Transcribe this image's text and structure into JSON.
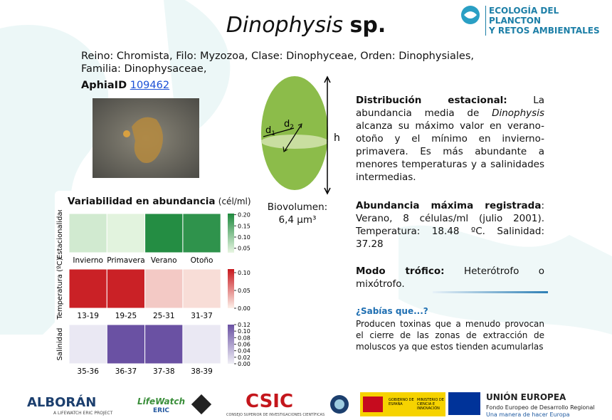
{
  "header": {
    "title_genus": "Dinophysis",
    "title_rest": "sp.",
    "logo_line_1": "ECOLOGÍA DEL PLANCTON",
    "logo_line_2": "Y RETOS AMBIENTALES"
  },
  "taxonomy": "Reino: Chromista, Filo: Myzozoa, Clase: Dinophyceae, Orden: Dinophysiales, Familia: Dinophysaceae,",
  "aphia": {
    "label": "AphiaID",
    "id": "109462"
  },
  "diagram": {
    "d": "d",
    "sub_1": "1",
    "sub_2": "2",
    "h": "h",
    "biovolume_label": "Biovolumen:",
    "biovolume_value": "6,4 µm³"
  },
  "distribution": {
    "title": "Distribución estacional:",
    "text_1": "La abundancia media de",
    "genus": "Dinophysis",
    "text_2": "alcanza su máximo valor en verano-otoño y el mínimo en invierno-primavera. Es más abundante a menores temperaturas y a salinidades intermedias."
  },
  "max_abundance": {
    "title": "Abundancia máxima registrada",
    "text": ": Verano, 8 células/ml (julio 2001). Temperatura: 18.48 ºC. Salinidad: 37.28"
  },
  "trophic": {
    "title": "Modo trófico:",
    "text": "Heterótrofo o mixótrofo."
  },
  "did_you_know": {
    "title": "¿Sabías que...?",
    "text": "Producen toxinas que a menudo provocan el cierre de las zonas de extracción de moluscos ya que estos tienden acumularlas"
  },
  "heatmap": {
    "title": "Variabilidad en abundancia",
    "unit": "(cél/ml)",
    "panels": [
      {
        "label": "Estacionalidad",
        "categories": [
          "Invierno",
          "Primavera",
          "Verano",
          "Otoño"
        ],
        "values": [
          0.05,
          0.035,
          0.2,
          0.19
        ],
        "vlim": [
          0.03,
          0.205
        ],
        "ticks": [
          {
            "value": 0.2,
            "label": "0.20"
          },
          0.15,
          {
            "value": 0.1,
            "label": "0.10"
          },
          0.05
        ],
        "cmap": [
          "#e8f6e3",
          "#1e8a3e"
        ]
      },
      {
        "label": "Temperatura (ºC)",
        "categories": [
          "13-19",
          "19-25",
          "25-31",
          "31-37"
        ],
        "values": [
          0.105,
          0.105,
          0.02,
          0.01
        ],
        "vlim": [
          0,
          0.11
        ],
        "ticks": [
          {
            "value": 0.1,
            "label": "0.10"
          },
          0.05,
          {
            "value": 0,
            "label": "0.00"
          }
        ],
        "cmap": [
          "#fdf1ea",
          "#c8171d"
        ]
      },
      {
        "label": "Salinidad",
        "categories": [
          "35-36",
          "36-37",
          "37-38",
          "38-39"
        ],
        "values": [
          0.005,
          0.12,
          0.12,
          0.005
        ],
        "vlim": [
          0,
          0.12
        ],
        "ticks": [
          0.12,
          {
            "value": 0.1,
            "label": "0.10"
          },
          0.08,
          0.06,
          0.04,
          0.02,
          {
            "value": 0,
            "label": "0.00"
          }
        ],
        "cmap": [
          "#f0eff6",
          "#6a51a3"
        ]
      }
    ]
  },
  "footer": {
    "alboran": "ALBORÁN",
    "alboran_sub": "A LIFEWATCH ERIC PROJECT",
    "lifewatch": "LifeWatch",
    "eric": "ERIC",
    "csic": "CSIC",
    "csic_sub": "CONSEJO SUPERIOR DE INVESTIGACIONES CIENTÍFICAS",
    "gobierno": "GOBIERNO DE ESPAÑA",
    "ministerio": "MINISTERIO DE CIENCIA E INNOVACIÓN",
    "ue": "UNIÓN EUROPEA",
    "ue_1": "Fondo Europeo de Desarrollo Regional",
    "ue_2": "Una manera de hacer Europa"
  }
}
